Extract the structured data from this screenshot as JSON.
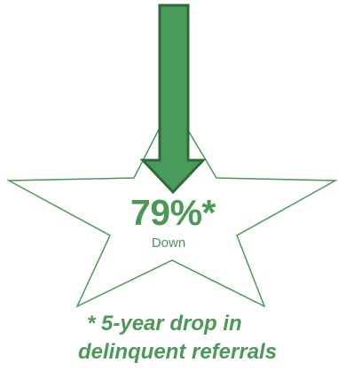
{
  "stat": {
    "value": "79%*",
    "label": "Down"
  },
  "footnote": {
    "line1": "* 5-year drop in",
    "line2": "delinquent referrals"
  },
  "colors": {
    "arrow_fill": "#4a9a5c",
    "arrow_stroke": "#2d6a37",
    "star_stroke": "#4a9a55",
    "text": "#4a9a55"
  },
  "icons": {
    "arrow": "down-arrow-icon",
    "star": "star-outline-icon"
  }
}
